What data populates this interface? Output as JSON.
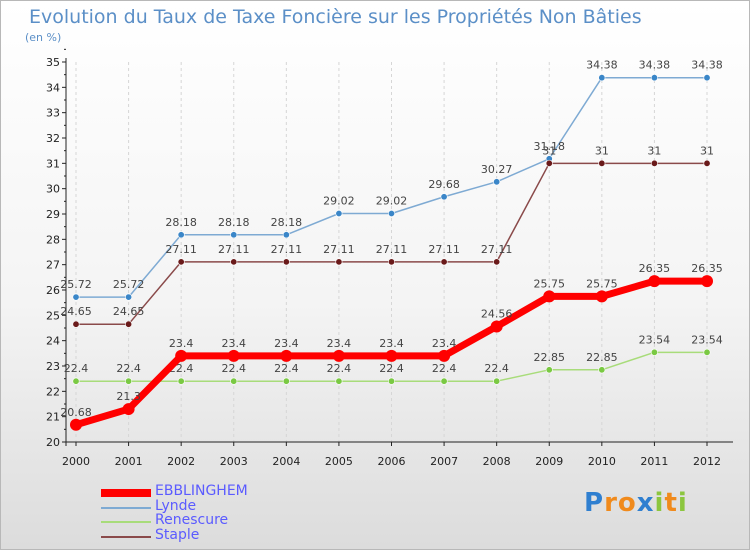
{
  "page": {
    "title": "Evolution du Taux de Taxe Foncière sur les Propriétés Non Bâties",
    "unit": "(en %)"
  },
  "chart_data": {
    "type": "line",
    "title": "Evolution du Taux de Taxe Foncière sur les Propriétés Non Bâties",
    "ylabel": "(en %)",
    "xlabel": "",
    "x": [
      2000,
      2001,
      2002,
      2003,
      2004,
      2005,
      2006,
      2007,
      2008,
      2009,
      2010,
      2011,
      2012
    ],
    "x_tick_labels": [
      "2000",
      "2001",
      "2002",
      "2003",
      "2004",
      "2005",
      "2006",
      "2007",
      "2008",
      "2009",
      "2010",
      "2011",
      "2012"
    ],
    "ylim": [
      20,
      35
    ],
    "y_ticks": [
      20,
      21,
      22,
      23,
      24,
      25,
      26,
      27,
      28,
      29,
      30,
      31,
      32,
      33,
      34,
      35
    ],
    "grid": "vertical dashed",
    "legend_position": "bottom-left",
    "series": [
      {
        "name": "EBBLINGHEM",
        "color": "#ff0000",
        "marker_color": "#ff0000",
        "emphasis": true,
        "values": [
          20.68,
          21.3,
          23.4,
          23.4,
          23.4,
          23.4,
          23.4,
          23.4,
          24.56,
          25.75,
          25.75,
          26.35,
          26.35
        ],
        "labels": [
          "20.68",
          "21.3",
          "23.4",
          "23.4",
          "23.4",
          "23.4",
          "23.4",
          "23.4",
          "24.56",
          "25.75",
          "25.75",
          "26.35",
          "26.35"
        ]
      },
      {
        "name": "Lynde",
        "color": "#7eaad3",
        "marker_color": "#3a86c8",
        "emphasis": false,
        "values": [
          25.72,
          25.72,
          28.18,
          28.18,
          28.18,
          29.02,
          29.02,
          29.68,
          30.27,
          31.18,
          34.38,
          34.38,
          34.38
        ],
        "labels": [
          "25.72",
          "25.72",
          "28.18",
          "28.18",
          "28.18",
          "29.02",
          "29.02",
          "29.68",
          "30.27",
          "31.18",
          "34.38",
          "34.38",
          "34.38"
        ]
      },
      {
        "name": "Renescure",
        "color": "#a8dc7a",
        "marker_color": "#7ac943",
        "emphasis": false,
        "values": [
          22.4,
          22.4,
          22.4,
          22.4,
          22.4,
          22.4,
          22.4,
          22.4,
          22.4,
          22.85,
          22.85,
          23.54,
          23.54
        ],
        "labels": [
          "22.4",
          "22.4",
          "22.4",
          "22.4",
          "22.4",
          "22.4",
          "22.4",
          "22.4",
          "22.4",
          "22.85",
          "22.85",
          "23.54",
          "23.54"
        ]
      },
      {
        "name": "Staple",
        "color": "#8a4a4a",
        "marker_color": "#6a1a1a",
        "emphasis": false,
        "values": [
          24.65,
          24.65,
          27.11,
          27.11,
          27.11,
          27.11,
          27.11,
          27.11,
          27.11,
          31,
          31,
          31,
          31
        ],
        "labels": [
          "24.65",
          "24.65",
          "27.11",
          "27.11",
          "27.11",
          "27.11",
          "27.11",
          "27.11",
          "27.11",
          "31",
          "31",
          "31",
          "31"
        ]
      }
    ]
  },
  "legend": {
    "items": [
      {
        "label": "EBBLINGHEM",
        "color": "#ff0000",
        "text_color": "#5b5bff"
      },
      {
        "label": "Lynde",
        "color": "#7eaad3",
        "text_color": "#5b5bff"
      },
      {
        "label": "Renescure",
        "color": "#a8dc7a",
        "text_color": "#5b5bff"
      },
      {
        "label": "Staple",
        "color": "#8a4a4a",
        "text_color": "#5b5bff"
      }
    ]
  },
  "logo": {
    "text": "Proxiti",
    "letters": [
      {
        "ch": "P",
        "color": "#2f7fd0"
      },
      {
        "ch": "r",
        "color": "#f08a1c"
      },
      {
        "ch": "o",
        "color": "#f08a1c"
      },
      {
        "ch": "x",
        "color": "#2f7fd0"
      },
      {
        "ch": "i",
        "color": "#8cc63f"
      },
      {
        "ch": "t",
        "color": "#f08a1c"
      },
      {
        "ch": "i",
        "color": "#8cc63f"
      }
    ]
  }
}
